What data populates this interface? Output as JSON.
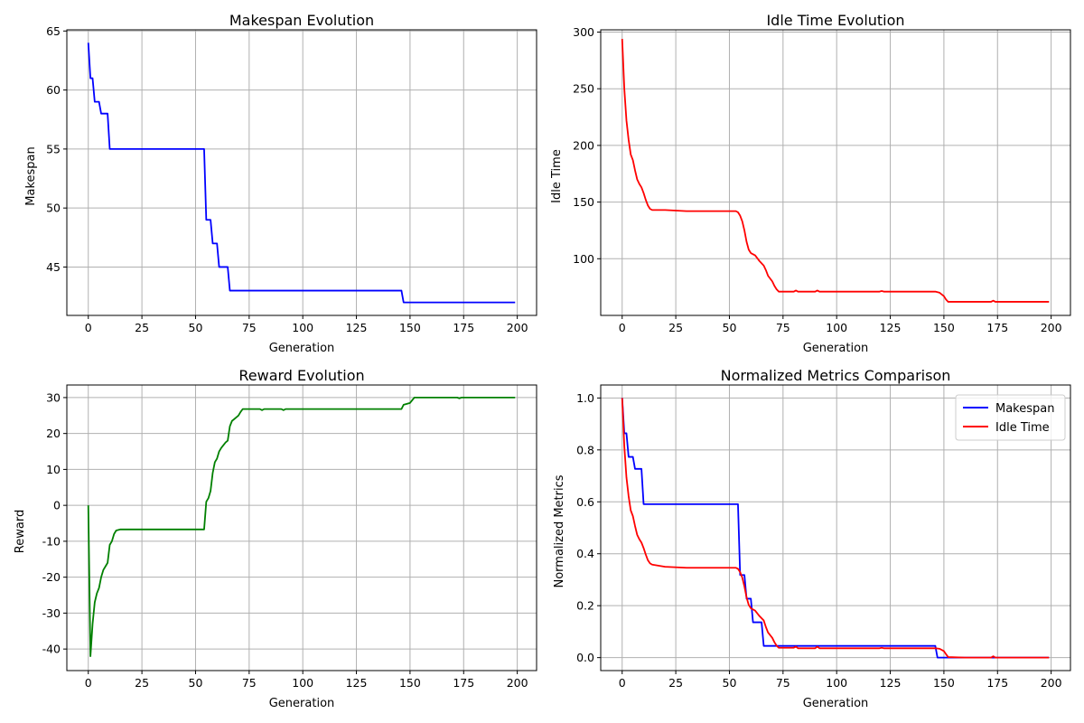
{
  "chart_data": [
    {
      "type": "line",
      "title": "Makespan Evolution",
      "xlabel": "Generation",
      "ylabel": "Makespan",
      "xlim": [
        -10,
        209
      ],
      "ylim": [
        40.9,
        65.1
      ],
      "xticks": [
        0,
        25,
        50,
        75,
        100,
        125,
        150,
        175,
        200
      ],
      "yticks": [
        45,
        50,
        55,
        60,
        65
      ],
      "grid": true,
      "legend": null,
      "series": [
        {
          "color": "#0000ff",
          "points": [
            [
              0,
              64
            ],
            [
              1,
              61
            ],
            [
              2,
              61
            ],
            [
              3,
              59
            ],
            [
              5,
              59
            ],
            [
              6,
              58
            ],
            [
              9,
              58
            ],
            [
              10,
              55
            ],
            [
              54,
              55
            ],
            [
              55,
              49
            ],
            [
              57,
              49
            ],
            [
              58,
              47
            ],
            [
              60,
              47
            ],
            [
              61,
              45
            ],
            [
              65,
              45
            ],
            [
              66,
              43
            ],
            [
              146,
              43
            ],
            [
              147,
              42
            ],
            [
              199,
              42
            ]
          ]
        }
      ]
    },
    {
      "type": "line",
      "title": "Idle Time Evolution",
      "xlabel": "Generation",
      "ylabel": "Idle Time",
      "xlim": [
        -10,
        209
      ],
      "ylim": [
        50,
        302
      ],
      "xticks": [
        0,
        25,
        50,
        75,
        100,
        125,
        150,
        175,
        200
      ],
      "yticks": [
        100,
        150,
        200,
        250,
        300
      ],
      "grid": true,
      "legend": null,
      "series": [
        {
          "color": "#ff0000",
          "points": [
            [
              0,
              294
            ],
            [
              1,
              250
            ],
            [
              2,
              222
            ],
            [
              3,
              205
            ],
            [
              4,
              192
            ],
            [
              5,
              187
            ],
            [
              6,
              178
            ],
            [
              7,
              170
            ],
            [
              8,
              166
            ],
            [
              9,
              163
            ],
            [
              10,
              158
            ],
            [
              11,
              152
            ],
            [
              12,
              147
            ],
            [
              13,
              144
            ],
            [
              14,
              143
            ],
            [
              20,
              143
            ],
            [
              30,
              142
            ],
            [
              40,
              142
            ],
            [
              50,
              142
            ],
            [
              53,
              142
            ],
            [
              54,
              141
            ],
            [
              55,
              138
            ],
            [
              56,
              133
            ],
            [
              57,
              125
            ],
            [
              58,
              115
            ],
            [
              59,
              108
            ],
            [
              60,
              105
            ],
            [
              62,
              103
            ],
            [
              64,
              98
            ],
            [
              66,
              94
            ],
            [
              67,
              90
            ],
            [
              68,
              85
            ],
            [
              70,
              80
            ],
            [
              71,
              76
            ],
            [
              72,
              73
            ],
            [
              73,
              71
            ],
            [
              80,
              71
            ],
            [
              81,
              72
            ],
            [
              82,
              71
            ],
            [
              90,
              71
            ],
            [
              91,
              72
            ],
            [
              92,
              71
            ],
            [
              120,
              71
            ],
            [
              121,
              71.5
            ],
            [
              122,
              71
            ],
            [
              140,
              71
            ],
            [
              146,
              71
            ],
            [
              148,
              70
            ],
            [
              150,
              67
            ],
            [
              151,
              64
            ],
            [
              152,
              62
            ],
            [
              160,
              62
            ],
            [
              172,
              62
            ],
            [
              173,
              63
            ],
            [
              174,
              62
            ],
            [
              185,
              62
            ],
            [
              199,
              62
            ]
          ]
        }
      ]
    },
    {
      "type": "line",
      "title": "Reward Evolution",
      "xlabel": "Generation",
      "ylabel": "Reward",
      "xlim": [
        -10,
        209
      ],
      "ylim": [
        -46,
        33.5
      ],
      "xticks": [
        0,
        25,
        50,
        75,
        100,
        125,
        150,
        175,
        200
      ],
      "yticks": [
        -40,
        -30,
        -20,
        -10,
        0,
        10,
        20,
        30
      ],
      "grid": true,
      "legend": null,
      "series": [
        {
          "color": "#008000",
          "points": [
            [
              0,
              0
            ],
            [
              1,
              -42
            ],
            [
              2,
              -33
            ],
            [
              3,
              -27
            ],
            [
              4,
              -24.5
            ],
            [
              5,
              -23
            ],
            [
              6,
              -20
            ],
            [
              7,
              -18
            ],
            [
              8,
              -17
            ],
            [
              9,
              -16
            ],
            [
              10,
              -11
            ],
            [
              11,
              -10
            ],
            [
              12,
              -8
            ],
            [
              13,
              -7
            ],
            [
              15,
              -6.7
            ],
            [
              20,
              -6.7
            ],
            [
              30,
              -6.7
            ],
            [
              40,
              -6.7
            ],
            [
              50,
              -6.7
            ],
            [
              54,
              -6.7
            ],
            [
              55,
              1
            ],
            [
              56,
              2
            ],
            [
              57,
              4
            ],
            [
              58,
              9
            ],
            [
              59,
              12
            ],
            [
              60,
              13
            ],
            [
              61,
              15
            ],
            [
              62,
              16
            ],
            [
              64,
              17.5
            ],
            [
              65,
              18
            ],
            [
              66,
              22
            ],
            [
              67,
              23.5
            ],
            [
              68,
              24
            ],
            [
              70,
              25
            ],
            [
              71,
              26
            ],
            [
              72,
              26.8
            ],
            [
              80,
              26.8
            ],
            [
              81,
              26.5
            ],
            [
              82,
              26.8
            ],
            [
              90,
              26.8
            ],
            [
              91,
              26.5
            ],
            [
              92,
              26.8
            ],
            [
              140,
              26.8
            ],
            [
              146,
              26.8
            ],
            [
              147,
              28
            ],
            [
              150,
              28.5
            ],
            [
              152,
              30
            ],
            [
              160,
              30
            ],
            [
              172,
              30
            ],
            [
              173,
              29.8
            ],
            [
              174,
              30
            ],
            [
              199,
              30
            ]
          ]
        }
      ]
    },
    {
      "type": "line",
      "title": "Normalized Metrics Comparison",
      "xlabel": "Generation",
      "ylabel": "Normalized Metrics",
      "xlim": [
        -10,
        209
      ],
      "ylim": [
        -0.05,
        1.05
      ],
      "xticks": [
        0,
        25,
        50,
        75,
        100,
        125,
        150,
        175,
        200
      ],
      "yticks": [
        0.0,
        0.2,
        0.4,
        0.6,
        0.8,
        1.0
      ],
      "grid": true,
      "legend": "top-right",
      "series": [
        {
          "name": "Makespan",
          "color": "#0000ff",
          "points": [
            [
              0,
              1.0
            ],
            [
              1,
              0.864
            ],
            [
              2,
              0.864
            ],
            [
              3,
              0.773
            ],
            [
              5,
              0.773
            ],
            [
              6,
              0.727
            ],
            [
              9,
              0.727
            ],
            [
              10,
              0.591
            ],
            [
              54,
              0.591
            ],
            [
              55,
              0.318
            ],
            [
              57,
              0.318
            ],
            [
              58,
              0.227
            ],
            [
              60,
              0.227
            ],
            [
              61,
              0.136
            ],
            [
              65,
              0.136
            ],
            [
              66,
              0.045
            ],
            [
              146,
              0.045
            ],
            [
              147,
              0.0
            ],
            [
              199,
              0.0
            ]
          ]
        },
        {
          "name": "Idle Time",
          "color": "#ff0000",
          "points": [
            [
              0,
              1.0
            ],
            [
              1,
              0.814
            ],
            [
              2,
              0.694
            ],
            [
              3,
              0.622
            ],
            [
              4,
              0.567
            ],
            [
              5,
              0.545
            ],
            [
              6,
              0.507
            ],
            [
              7,
              0.473
            ],
            [
              8,
              0.456
            ],
            [
              9,
              0.443
            ],
            [
              10,
              0.422
            ],
            [
              11,
              0.397
            ],
            [
              12,
              0.375
            ],
            [
              13,
              0.363
            ],
            [
              14,
              0.358
            ],
            [
              20,
              0.35
            ],
            [
              30,
              0.346
            ],
            [
              40,
              0.346
            ],
            [
              50,
              0.346
            ],
            [
              53,
              0.346
            ],
            [
              54,
              0.342
            ],
            [
              55,
              0.329
            ],
            [
              56,
              0.308
            ],
            [
              57,
              0.274
            ],
            [
              58,
              0.232
            ],
            [
              59,
              0.203
            ],
            [
              60,
              0.19
            ],
            [
              62,
              0.181
            ],
            [
              64,
              0.16
            ],
            [
              66,
              0.143
            ],
            [
              67,
              0.118
            ],
            [
              68,
              0.097
            ],
            [
              70,
              0.076
            ],
            [
              71,
              0.059
            ],
            [
              72,
              0.046
            ],
            [
              73,
              0.038
            ],
            [
              80,
              0.038
            ],
            [
              81,
              0.042
            ],
            [
              82,
              0.036
            ],
            [
              90,
              0.036
            ],
            [
              91,
              0.042
            ],
            [
              92,
              0.036
            ],
            [
              120,
              0.036
            ],
            [
              121,
              0.038
            ],
            [
              122,
              0.036
            ],
            [
              140,
              0.036
            ],
            [
              146,
              0.036
            ],
            [
              148,
              0.034
            ],
            [
              150,
              0.025
            ],
            [
              151,
              0.013
            ],
            [
              152,
              0.002
            ],
            [
              160,
              0.0
            ],
            [
              172,
              0.0
            ],
            [
              173,
              0.005
            ],
            [
              174,
              0.0
            ],
            [
              199,
              0.0
            ]
          ]
        }
      ]
    }
  ]
}
